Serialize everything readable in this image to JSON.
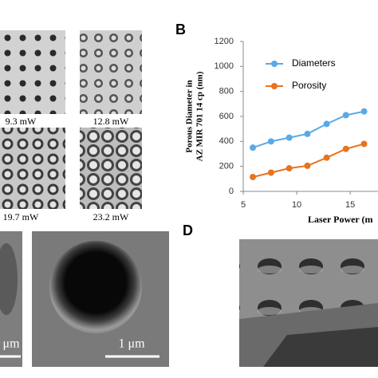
{
  "chart_data": {
    "type": "line",
    "panel": "B",
    "y_label": [
      "Porous Diameter in",
      "AZ MIR 701 14 cp (nm)"
    ],
    "x_label": "Laser Power (m",
    "x": [
      5.9,
      7.6,
      9.3,
      11,
      12.8,
      14.6,
      16.3
    ],
    "series": [
      {
        "name": "Diameters",
        "color": "#5aa9e6",
        "values": [
          350,
          400,
          430,
          460,
          540,
          610,
          640
        ]
      },
      {
        "name": "Porosity",
        "color": "#e8731f",
        "values": [
          115,
          150,
          185,
          205,
          270,
          340,
          380
        ]
      }
    ],
    "xlim": [
      5,
      17.6
    ],
    "xticks": [
      5,
      10,
      15
    ],
    "ylim": [
      0,
      1200
    ],
    "yticks": [
      0,
      200,
      400,
      600,
      800,
      1000,
      1200
    ],
    "grid": false
  },
  "image_labels": [
    "9.3 mW",
    "12.8 mW",
    "19.7 mW",
    "23.2 mW"
  ],
  "panel_d": "D",
  "scale_bars": [
    "μm",
    "1 μm"
  ]
}
